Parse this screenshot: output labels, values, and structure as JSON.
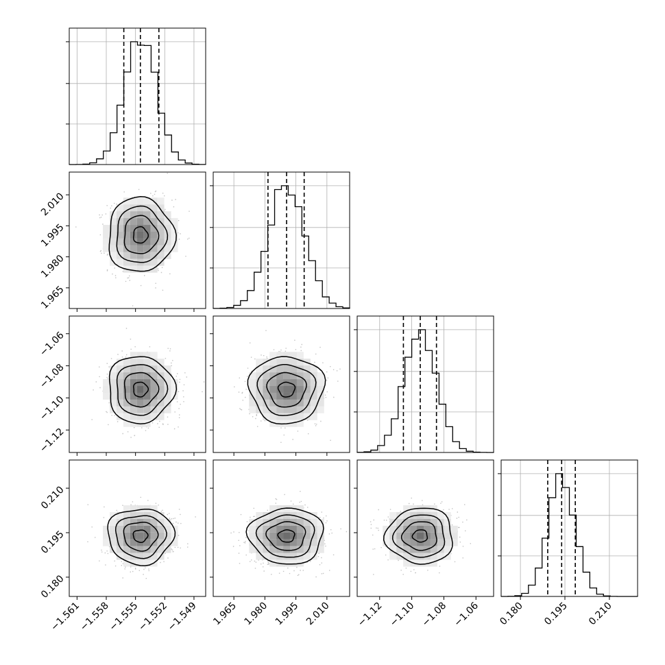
{
  "chart_data": {
    "type": "corner",
    "parameters": [
      {
        "range": [
          -1.5618,
          -1.5478
        ],
        "ticks": [
          -1.561,
          -1.558,
          -1.555,
          -1.552,
          -1.549
        ],
        "tick_labels": [
          "−1.561",
          "−1.558",
          "−1.555",
          "−1.552",
          "−1.549"
        ],
        "quantiles": [
          -1.5562,
          -1.5545,
          -1.5526
        ],
        "median": -1.5545,
        "sigma": 0.00165,
        "hist_yticks_fraction": [
          0.33,
          0.66,
          1.0
        ]
      },
      {
        "range": [
          1.955,
          2.021
        ],
        "ticks": [
          1.965,
          1.98,
          1.995,
          2.01
        ],
        "tick_labels": [
          "1.965",
          "1.980",
          "1.995",
          "2.010"
        ],
        "quantiles": [
          1.9815,
          1.9905,
          1.999
        ],
        "median": 1.9905,
        "sigma": 0.0088,
        "hist_yticks_fraction": [
          0.33,
          0.66,
          1.0
        ]
      },
      {
        "range": [
          -1.134,
          -1.049
        ],
        "ticks": [
          -1.12,
          -1.1,
          -1.08,
          -1.06
        ],
        "tick_labels": [
          "−1.12",
          "−1.10",
          "−1.08",
          "−1.06"
        ],
        "quantiles": [
          -1.1052,
          -1.0947,
          -1.0846
        ],
        "median": -1.0947,
        "sigma": 0.0102,
        "hist_yticks_fraction": [
          0.33,
          0.66,
          1.0
        ]
      },
      {
        "range": [
          0.1735,
          0.2195
        ],
        "ticks": [
          0.18,
          0.195,
          0.21
        ],
        "tick_labels": [
          "0.180",
          "0.195",
          "0.210"
        ],
        "quantiles": [
          0.1892,
          0.1939,
          0.1985
        ],
        "median": 0.1939,
        "sigma": 0.0046,
        "hist_yticks_fraction": [
          0.33,
          0.66,
          1.0
        ]
      }
    ],
    "grid": true,
    "quantile_style": "dashed",
    "colors": {
      "hist": "#000000",
      "contour": "#000000",
      "scatter": "#9a9a9a",
      "grid": "#b0b0b0"
    }
  }
}
